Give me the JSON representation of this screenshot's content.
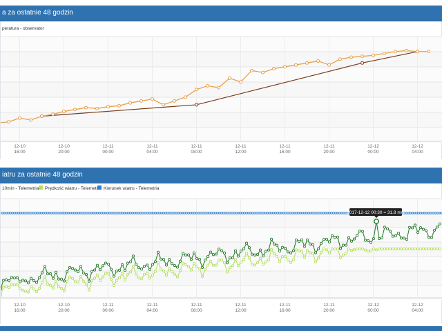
{
  "panels": {
    "temperature": {
      "title": "a za ostatnie 48 godzin",
      "legend": [
        {
          "label": "peratura - observator",
          "color": "#d98b2f"
        }
      ]
    },
    "wind": {
      "title": "iatru za ostatnie 48 godzin",
      "legend": [
        {
          "label": "10min - Telemetria",
          "color": "#2e7d32"
        },
        {
          "label": "Prędkość wiatru - Telemetria",
          "color": "#b5e05f"
        },
        {
          "label": "Kierunek wiatru - Telemetria",
          "color": "#2f7fd0"
        }
      ],
      "tooltip": "2017-12-12 00:30 = 31.8 m/s"
    }
  },
  "x_ticks": [
    {
      "date": "12-10",
      "time": "16:00"
    },
    {
      "date": "12-10",
      "time": "20:00"
    },
    {
      "date": "12-11",
      "time": "00:00"
    },
    {
      "date": "12-11",
      "time": "04:00"
    },
    {
      "date": "12-11",
      "time": "08:00"
    },
    {
      "date": "12-11",
      "time": "12:00"
    },
    {
      "date": "12-11",
      "time": "16:00"
    },
    {
      "date": "12-11",
      "time": "20:00"
    },
    {
      "date": "12-12",
      "time": "00:00"
    },
    {
      "date": "12-12",
      "time": "04:00"
    }
  ],
  "colors": {
    "header": "#2f72b0",
    "temp_orange": "#e8a14e",
    "temp_brown": "#7a3b1a",
    "wind_dark": "#2e7d32",
    "wind_light": "#b5e05f",
    "wind_dir": "#2f7fd0"
  },
  "chart_data": [
    {
      "type": "line",
      "x_hours": [
        14,
        15,
        16,
        17,
        18,
        19,
        20,
        21,
        22,
        23,
        24,
        25,
        26,
        27,
        28,
        29,
        30,
        31,
        32,
        33,
        34,
        35,
        36,
        37,
        38,
        39,
        40,
        41,
        42,
        43,
        44,
        45,
        46,
        47,
        48,
        49,
        50,
        51,
        52,
        53
      ],
      "series": [
        {
          "name": "peratura - observator",
          "values": [
            5,
            6,
            10,
            8,
            12,
            14,
            17,
            19,
            21,
            20,
            22,
            23,
            26,
            28,
            30,
            24,
            28,
            32,
            40,
            44,
            42,
            52,
            48,
            60,
            58,
            62,
            64,
            66,
            68,
            70,
            66,
            72,
            74,
            75,
            76,
            78,
            80,
            81,
            80,
            80
          ]
        },
        {
          "name": "",
          "values_sparse": [
            [
              18,
              12
            ],
            [
              32,
              24
            ],
            [
              47,
              68
            ],
            [
              52,
              80
            ]
          ]
        }
      ]
    },
    {
      "type": "line",
      "series": [
        {
          "name": "10min - Telemetria",
          "peak": 31.8
        },
        {
          "name": "Prędkość wiatru - Telemetria"
        },
        {
          "name": "Kierunek wiatru - Telemetria"
        }
      ]
    }
  ]
}
